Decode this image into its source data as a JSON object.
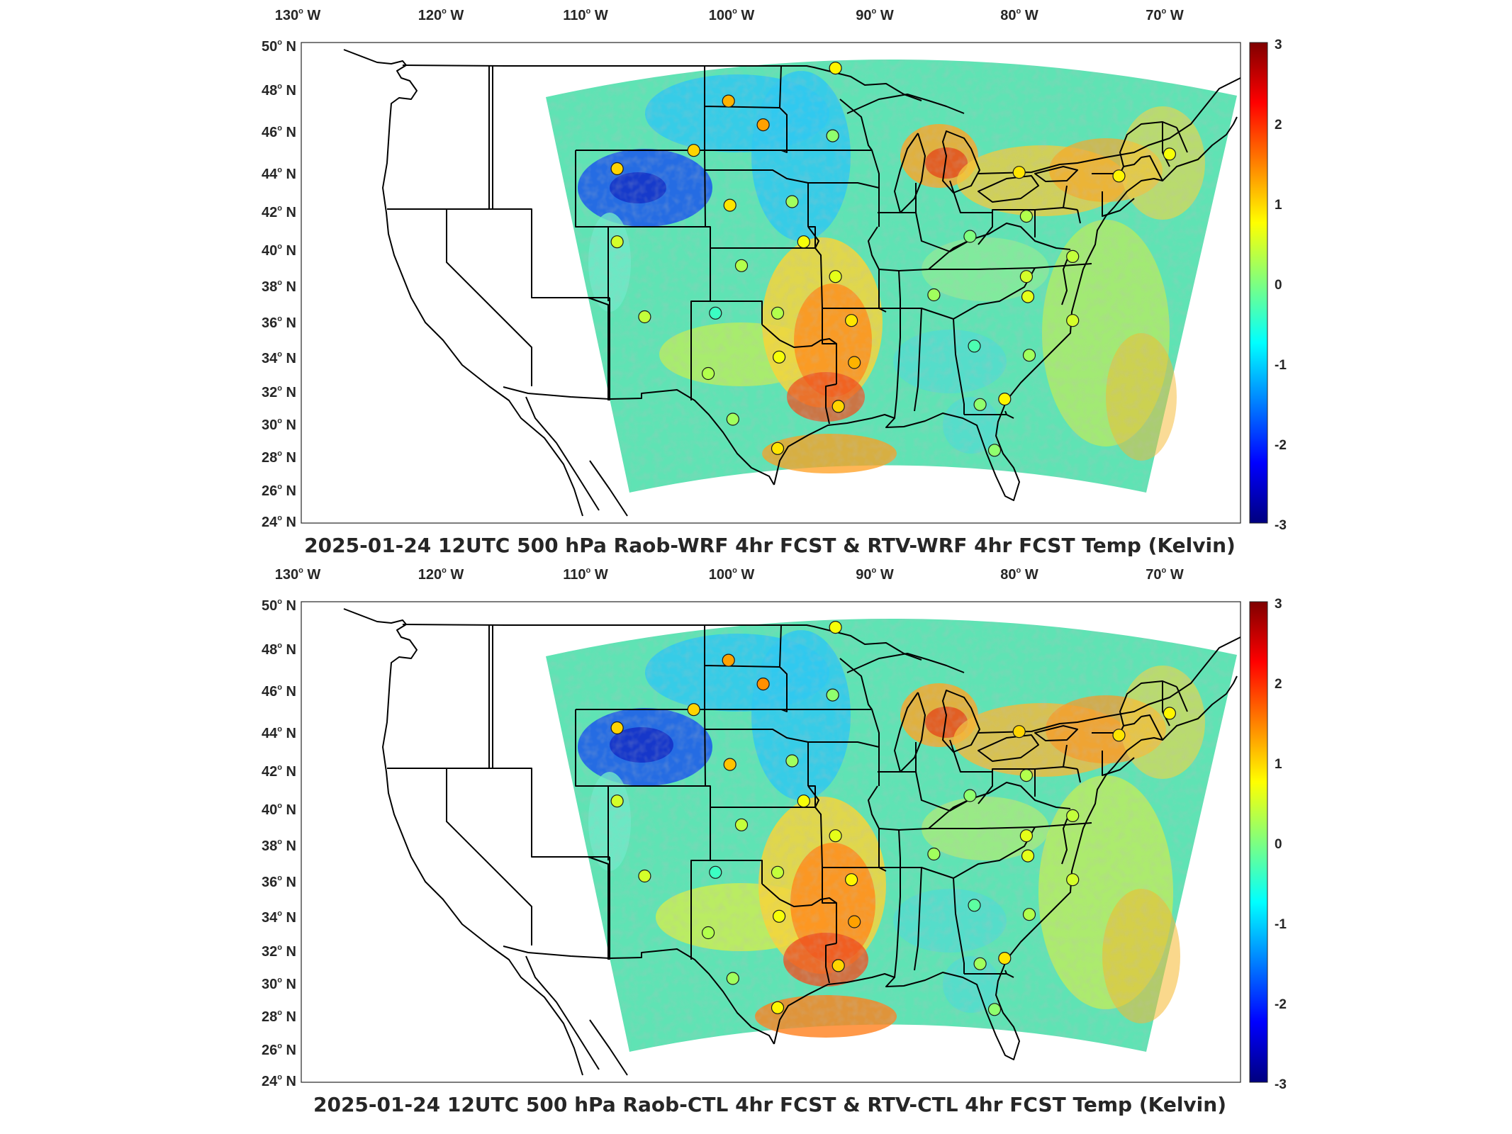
{
  "figure": {
    "colorscale": [
      "#00007f",
      "#0000ff",
      "#007fff",
      "#00ffff",
      "#7fff7f",
      "#ffff00",
      "#ff7f00",
      "#ff0000",
      "#7f0000"
    ],
    "colorbar_ticks": [
      "3",
      "2",
      "1",
      "0",
      "-1",
      "-2",
      "-3"
    ],
    "lon_labels": [
      {
        "deg": "130",
        "hem": "W"
      },
      {
        "deg": "120",
        "hem": "W"
      },
      {
        "deg": "110",
        "hem": "W"
      },
      {
        "deg": "100",
        "hem": "W"
      },
      {
        "deg": "90",
        "hem": "W"
      },
      {
        "deg": "80",
        "hem": "W"
      },
      {
        "deg": "70",
        "hem": "W"
      }
    ],
    "lat_labels": [
      {
        "deg": "50",
        "hem": "N"
      },
      {
        "deg": "48",
        "hem": "N"
      },
      {
        "deg": "46",
        "hem": "N"
      },
      {
        "deg": "44",
        "hem": "N"
      },
      {
        "deg": "42",
        "hem": "N"
      },
      {
        "deg": "40",
        "hem": "N"
      },
      {
        "deg": "38",
        "hem": "N"
      },
      {
        "deg": "36",
        "hem": "N"
      },
      {
        "deg": "34",
        "hem": "N"
      },
      {
        "deg": "32",
        "hem": "N"
      },
      {
        "deg": "30",
        "hem": "N"
      },
      {
        "deg": "28",
        "hem": "N"
      },
      {
        "deg": "26",
        "hem": "N"
      },
      {
        "deg": "24",
        "hem": "N"
      }
    ],
    "panels": [
      {
        "id": "top",
        "title": "2025-01-24 12UTC 500 hPa Raob-WRF 4hr FCST & RTV-WRF 4hr FCST Temp (Kelvin)",
        "stations": [
          {
            "lon": -93.4,
            "lat": 48.6,
            "value": 0.8
          },
          {
            "lon": -100.8,
            "lat": 46.8,
            "value": 1.2
          },
          {
            "lon": -98.4,
            "lat": 45.5,
            "value": 1.3
          },
          {
            "lon": -93.6,
            "lat": 44.9,
            "value": 0.1
          },
          {
            "lon": -103.2,
            "lat": 44.1,
            "value": 1.0
          },
          {
            "lon": -108.5,
            "lat": 43.1,
            "value": 1.0
          },
          {
            "lon": -100.7,
            "lat": 41.1,
            "value": 0.9
          },
          {
            "lon": -96.4,
            "lat": 41.3,
            "value": 0.2
          },
          {
            "lon": -108.5,
            "lat": 39.1,
            "value": 0.5
          },
          {
            "lon": -95.6,
            "lat": 39.1,
            "value": 0.7
          },
          {
            "lon": -99.9,
            "lat": 37.8,
            "value": 0.3
          },
          {
            "lon": -93.4,
            "lat": 37.2,
            "value": 0.6
          },
          {
            "lon": -106.6,
            "lat": 35.0,
            "value": 0.4
          },
          {
            "lon": -101.7,
            "lat": 35.2,
            "value": -0.4
          },
          {
            "lon": -97.4,
            "lat": 35.2,
            "value": 0.3
          },
          {
            "lon": -92.3,
            "lat": 34.8,
            "value": 0.9
          },
          {
            "lon": -97.3,
            "lat": 32.8,
            "value": 0.7
          },
          {
            "lon": -102.2,
            "lat": 31.9,
            "value": 0.3
          },
          {
            "lon": -92.1,
            "lat": 32.5,
            "value": 1.2
          },
          {
            "lon": -93.2,
            "lat": 30.1,
            "value": 1.0
          },
          {
            "lon": -100.5,
            "lat": 29.4,
            "value": 0.2
          },
          {
            "lon": -97.4,
            "lat": 27.8,
            "value": 0.9
          },
          {
            "lon": -86.6,
            "lat": 36.2,
            "value": 0.2
          },
          {
            "lon": -84.1,
            "lat": 39.4,
            "value": 0.0
          },
          {
            "lon": -80.2,
            "lat": 40.5,
            "value": 0.3
          },
          {
            "lon": -80.2,
            "lat": 37.2,
            "value": 0.5
          },
          {
            "lon": -80.1,
            "lat": 36.1,
            "value": 0.6
          },
          {
            "lon": -83.8,
            "lat": 33.4,
            "value": -0.3
          },
          {
            "lon": -80.0,
            "lat": 32.9,
            "value": 0.2
          },
          {
            "lon": -81.7,
            "lat": 30.5,
            "value": 0.8
          },
          {
            "lon": -77.0,
            "lat": 34.8,
            "value": 0.5
          },
          {
            "lon": -77.0,
            "lat": 38.3,
            "value": 0.4
          },
          {
            "lon": -83.4,
            "lat": 30.2,
            "value": 0.1
          },
          {
            "lon": -82.4,
            "lat": 27.7,
            "value": 0.1
          },
          {
            "lon": -80.7,
            "lat": 42.9,
            "value": 0.9
          },
          {
            "lon": -73.8,
            "lat": 42.7,
            "value": 0.8
          },
          {
            "lon": -70.3,
            "lat": 43.9,
            "value": 0.7
          }
        ]
      },
      {
        "id": "bottom",
        "title": "2025-01-24 12UTC 500 hPa Raob-CTL 4hr FCST & RTV-CTL 4hr FCST Temp (Kelvin)",
        "stations": [
          {
            "lon": -93.4,
            "lat": 48.6,
            "value": 0.7
          },
          {
            "lon": -100.8,
            "lat": 46.8,
            "value": 1.3
          },
          {
            "lon": -98.4,
            "lat": 45.5,
            "value": 1.4
          },
          {
            "lon": -93.6,
            "lat": 44.9,
            "value": 0.1
          },
          {
            "lon": -103.2,
            "lat": 44.1,
            "value": 1.0
          },
          {
            "lon": -108.5,
            "lat": 43.1,
            "value": 1.0
          },
          {
            "lon": -100.7,
            "lat": 41.1,
            "value": 1.1
          },
          {
            "lon": -96.4,
            "lat": 41.3,
            "value": 0.2
          },
          {
            "lon": -108.5,
            "lat": 39.1,
            "value": 0.5
          },
          {
            "lon": -95.6,
            "lat": 39.1,
            "value": 0.7
          },
          {
            "lon": -99.9,
            "lat": 37.8,
            "value": 0.4
          },
          {
            "lon": -93.4,
            "lat": 37.2,
            "value": 0.6
          },
          {
            "lon": -106.6,
            "lat": 35.0,
            "value": 0.5
          },
          {
            "lon": -101.7,
            "lat": 35.2,
            "value": -0.4
          },
          {
            "lon": -97.4,
            "lat": 35.2,
            "value": 0.4
          },
          {
            "lon": -92.3,
            "lat": 34.8,
            "value": 0.8
          },
          {
            "lon": -97.3,
            "lat": 32.8,
            "value": 0.7
          },
          {
            "lon": -102.2,
            "lat": 31.9,
            "value": 0.3
          },
          {
            "lon": -92.1,
            "lat": 32.5,
            "value": 1.3
          },
          {
            "lon": -93.2,
            "lat": 30.1,
            "value": 1.0
          },
          {
            "lon": -100.5,
            "lat": 29.4,
            "value": 0.2
          },
          {
            "lon": -97.4,
            "lat": 27.8,
            "value": 0.8
          },
          {
            "lon": -86.6,
            "lat": 36.2,
            "value": 0.2
          },
          {
            "lon": -84.1,
            "lat": 39.4,
            "value": 0.1
          },
          {
            "lon": -80.2,
            "lat": 40.5,
            "value": 0.3
          },
          {
            "lon": -80.2,
            "lat": 37.2,
            "value": 0.6
          },
          {
            "lon": -80.1,
            "lat": 36.1,
            "value": 0.6
          },
          {
            "lon": -83.8,
            "lat": 33.4,
            "value": -0.2
          },
          {
            "lon": -80.0,
            "lat": 32.9,
            "value": 0.3
          },
          {
            "lon": -81.7,
            "lat": 30.5,
            "value": 0.9
          },
          {
            "lon": -77.0,
            "lat": 34.8,
            "value": 0.5
          },
          {
            "lon": -77.0,
            "lat": 38.3,
            "value": 0.4
          },
          {
            "lon": -83.4,
            "lat": 30.2,
            "value": 0.2
          },
          {
            "lon": -82.4,
            "lat": 27.7,
            "value": 0.1
          },
          {
            "lon": -80.7,
            "lat": 42.9,
            "value": 1.0
          },
          {
            "lon": -73.8,
            "lat": 42.7,
            "value": 0.9
          },
          {
            "lon": -70.3,
            "lat": 43.9,
            "value": 0.8
          }
        ]
      }
    ]
  }
}
